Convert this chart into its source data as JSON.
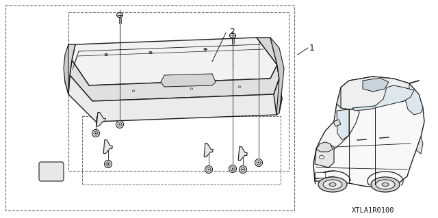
{
  "bg_color": "#ffffff",
  "line_color": "#1a1a1a",
  "dashed_color": "#666666",
  "fig_width": 6.4,
  "fig_height": 3.19,
  "label_1": "1",
  "label_2": "2",
  "reference_code": "XTLA1R0100"
}
